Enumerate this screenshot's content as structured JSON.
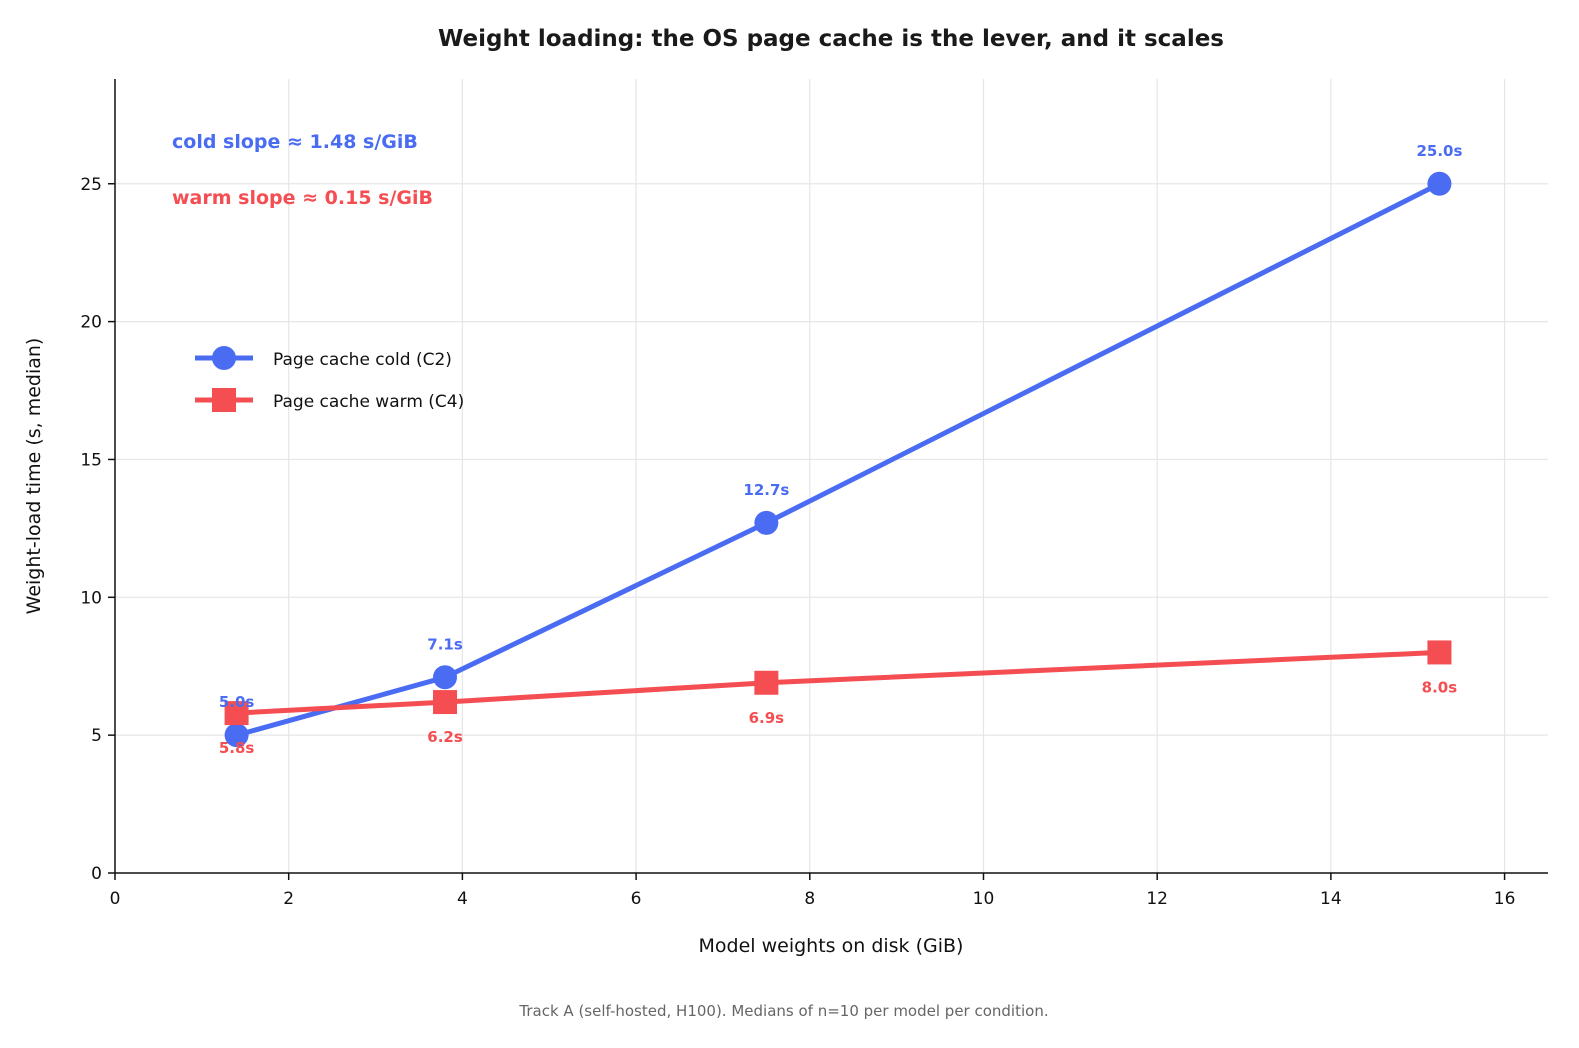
{
  "chart_data": {
    "type": "line",
    "title": "Weight loading: the OS page cache is the lever, and it scales",
    "xlabel": "Model weights on disk (GiB)",
    "ylabel": "Weight-load time (s, median)",
    "xlim": [
      0,
      16.5
    ],
    "ylim": [
      0,
      28.8
    ],
    "xticks": [
      0,
      2,
      4,
      6,
      8,
      10,
      12,
      14,
      16
    ],
    "yticks": [
      0,
      5,
      10,
      15,
      20,
      25
    ],
    "grid": true,
    "legend_position": "upper-left",
    "series": [
      {
        "name": "Page cache cold (C2)",
        "color": "#4a6cf2",
        "marker": "circle",
        "x": [
          1.4,
          3.8,
          7.5,
          15.25
        ],
        "y": [
          5.0,
          7.1,
          12.7,
          25.0
        ],
        "labels": [
          "5.0s",
          "7.1s",
          "12.7s",
          "25.0s"
        ],
        "label_placement": "above"
      },
      {
        "name": "Page cache warm (C4)",
        "color": "#f44e52",
        "marker": "square",
        "x": [
          1.4,
          3.8,
          7.5,
          15.25
        ],
        "y": [
          5.8,
          6.2,
          6.9,
          8.0
        ],
        "labels": [
          "5.8s",
          "6.2s",
          "6.9s",
          "8.0s"
        ],
        "label_placement": "below"
      }
    ],
    "annotations": [
      {
        "text": "cold slope ≈ 1.48 s/GiB",
        "color": "#4a6cf2"
      },
      {
        "text": "warm slope ≈ 0.15 s/GiB",
        "color": "#f44e52"
      }
    ]
  },
  "caption": "Track A (self-hosted, H100). Medians of n=10 per model per condition."
}
